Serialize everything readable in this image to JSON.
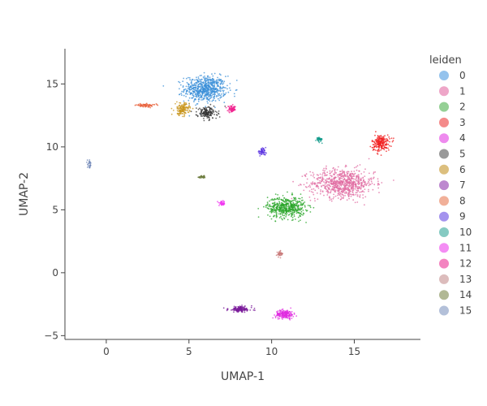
{
  "chart_data": {
    "type": "scatter",
    "title": "",
    "xlabel": "UMAP-1",
    "ylabel": "UMAP-2",
    "xlim": [
      -2.5,
      19
    ],
    "ylim": [
      -5.3,
      17.8
    ],
    "x_ticks": [
      0,
      5,
      10,
      15
    ],
    "y_ticks": [
      -5,
      0,
      5,
      10,
      15
    ],
    "grid": false,
    "legend": {
      "title": "leiden",
      "placement": "right",
      "entries": [
        "0",
        "1",
        "2",
        "3",
        "4",
        "5",
        "6",
        "7",
        "8",
        "9",
        "10",
        "11",
        "12",
        "13",
        "14",
        "15"
      ]
    },
    "clusters": [
      {
        "name": "0",
        "color": "#3a8fd8",
        "center": [
          6.0,
          14.6
        ],
        "spread": [
          1.05,
          0.85
        ],
        "count": 650
      },
      {
        "name": "1",
        "color": "#e06aa0",
        "center": [
          14.3,
          7.1
        ],
        "spread": [
          1.6,
          0.95
        ],
        "count": 750
      },
      {
        "name": "2",
        "color": "#2aa52a",
        "center": [
          10.9,
          5.2
        ],
        "spread": [
          0.95,
          0.7
        ],
        "count": 500
      },
      {
        "name": "3",
        "color": "#f01a1a",
        "center": [
          16.6,
          10.3
        ],
        "spread": [
          0.45,
          0.55
        ],
        "count": 200
      },
      {
        "name": "4",
        "color": "#e02ee0",
        "center": [
          10.8,
          -3.3
        ],
        "spread": [
          0.45,
          0.28
        ],
        "count": 200
      },
      {
        "name": "5",
        "color": "#333333",
        "center": [
          6.1,
          12.7
        ],
        "spread": [
          0.5,
          0.4
        ],
        "count": 160
      },
      {
        "name": "6",
        "color": "#c8961e",
        "center": [
          4.6,
          13.0
        ],
        "spread": [
          0.35,
          0.4
        ],
        "count": 150
      },
      {
        "name": "7",
        "color": "#7a1a9a",
        "center": [
          8.1,
          -2.9
        ],
        "spread": [
          0.6,
          0.2
        ],
        "count": 140
      },
      {
        "name": "8",
        "color": "#e8603a",
        "center": [
          2.4,
          13.3
        ],
        "spread": [
          0.5,
          0.1
        ],
        "count": 70
      },
      {
        "name": "9",
        "color": "#5a32e0",
        "center": [
          9.4,
          9.6
        ],
        "spread": [
          0.22,
          0.2
        ],
        "count": 50
      },
      {
        "name": "10",
        "color": "#0f9a8a",
        "center": [
          12.9,
          10.6
        ],
        "spread": [
          0.15,
          0.15
        ],
        "count": 40
      },
      {
        "name": "11",
        "color": "#f03af0",
        "center": [
          7.0,
          5.5
        ],
        "spread": [
          0.15,
          0.15
        ],
        "count": 40
      },
      {
        "name": "12",
        "color": "#f01e8c",
        "center": [
          7.6,
          13.0
        ],
        "spread": [
          0.22,
          0.2
        ],
        "count": 60
      },
      {
        "name": "13",
        "color": "#c87878",
        "center": [
          10.5,
          1.5
        ],
        "spread": [
          0.15,
          0.2
        ],
        "count": 35
      },
      {
        "name": "14",
        "color": "#6a7a3a",
        "center": [
          5.8,
          7.6
        ],
        "spread": [
          0.2,
          0.1
        ],
        "count": 30
      },
      {
        "name": "15",
        "color": "#6a82b4",
        "center": [
          -1.0,
          8.6
        ],
        "spread": [
          0.12,
          0.25
        ],
        "count": 25
      }
    ],
    "legend_colors": [
      "#95c3ed",
      "#eea6c8",
      "#95d095",
      "#f48a8a",
      "#ee8aee",
      "#999999",
      "#dcbf7e",
      "#bd88cf",
      "#f1b099",
      "#a493ee",
      "#85cac2",
      "#f48df4",
      "#f384c0",
      "#dcbcbc",
      "#b1b894",
      "#b3c0d9"
    ]
  }
}
